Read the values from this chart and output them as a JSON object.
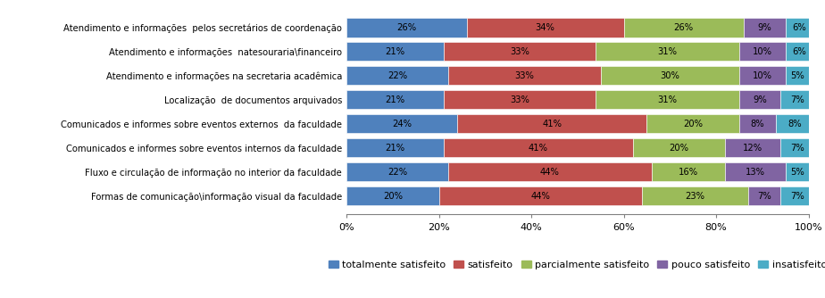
{
  "categories": [
    "Atendimento e informações  pelos secretários de coordenação",
    "Atendimento e informações  natesouraria\\financeiro",
    "Atendimento e informações na secretaria acadêmica",
    "Localização  de documentos arquivados",
    "Comunicados e informes sobre eventos externos  da faculdade",
    "Comunicados e informes sobre eventos internos da faculdade",
    "Fluxo e circulação de informação no interior da faculdade",
    "Formas de comunicação\\informação visual da faculdade"
  ],
  "series": {
    "totalmente satisfeito": [
      26,
      21,
      22,
      21,
      24,
      21,
      22,
      20
    ],
    "satisfeito": [
      34,
      33,
      33,
      33,
      41,
      41,
      44,
      44
    ],
    "parcialmente satisfeito": [
      26,
      31,
      30,
      31,
      20,
      20,
      16,
      23
    ],
    "pouco satisfeito": [
      9,
      10,
      10,
      9,
      8,
      12,
      13,
      7
    ],
    "insatisfeito": [
      6,
      6,
      5,
      7,
      8,
      7,
      5,
      7
    ]
  },
  "colors": {
    "totalmente satisfeito": "#4F81BD",
    "satisfeito": "#C0504D",
    "parcialmente satisfeito": "#9BBB59",
    "pouco satisfeito": "#8064A2",
    "insatisfeito": "#4BACC6"
  },
  "legend_labels": [
    "totalmente satisfeito",
    "satisfeito",
    "parcialmente satisfeito",
    "pouco satisfeito",
    "insatisfeito"
  ],
  "xlim": [
    0,
    100
  ],
  "xticks": [
    0,
    20,
    40,
    60,
    80,
    100
  ],
  "xticklabels": [
    "0%",
    "20%",
    "40%",
    "60%",
    "80%",
    "100%"
  ],
  "bar_height": 0.78,
  "figsize": [
    9.24,
    3.34
  ],
  "dpi": 100,
  "fontsize_labels": 7.2,
  "fontsize_ticks": 8,
  "fontsize_legend": 8,
  "fontsize_bar_text": 7.2
}
